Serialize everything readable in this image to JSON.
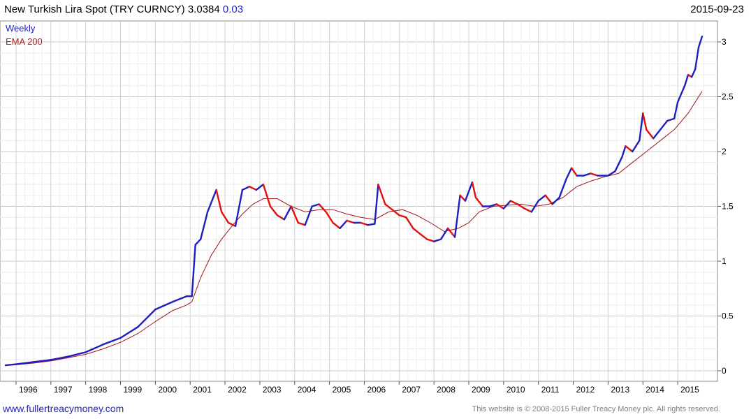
{
  "header": {
    "title": "New Turkish Lira Spot (TRY CURNCY) 3.0384",
    "change": "0.03",
    "date": "2015-09-23"
  },
  "footer": {
    "link": "www.fullertreacymoney.com",
    "copyright": "This website is © 2008-2015 Fuller Treacy Money plc. All rights reserved."
  },
  "colors": {
    "up": "#1f1fbf",
    "down": "#e01010",
    "ema": "#a01818",
    "grid": "#d8d8d8",
    "legend_weekly": "#1f1fbf",
    "legend_ema": "#b02020"
  },
  "chart_data": {
    "type": "line",
    "title": "New Turkish Lira Spot (TRY CURNCY) 3.0384",
    "x_ticks": [
      "1996",
      "1997",
      "1998",
      "1999",
      "2000",
      "2001",
      "2002",
      "2003",
      "2004",
      "2005",
      "2006",
      "2007",
      "2008",
      "2009",
      "2010",
      "2011",
      "2012",
      "2013",
      "2014",
      "2015"
    ],
    "y_ticks": [
      "0",
      "0.5",
      "1",
      "1.5",
      "2",
      "2.5",
      "3"
    ],
    "ylim": [
      0,
      3.1
    ],
    "xlim": [
      1995.7,
      2015.9
    ],
    "grid": true,
    "legend_position": "top-left",
    "series": [
      {
        "name": "Weekly",
        "x": [
          1995.7,
          1996.0,
          1996.5,
          1997.0,
          1997.5,
          1998.0,
          1998.5,
          1999.0,
          1999.5,
          2000.0,
          2000.5,
          2000.9,
          2001.05,
          2001.15,
          2001.3,
          2001.5,
          2001.75,
          2001.9,
          2002.1,
          2002.3,
          2002.5,
          2002.7,
          2002.9,
          2003.1,
          2003.3,
          2003.5,
          2003.7,
          2003.9,
          2004.1,
          2004.3,
          2004.5,
          2004.7,
          2004.9,
          2005.1,
          2005.3,
          2005.5,
          2005.7,
          2005.9,
          2006.1,
          2006.3,
          2006.4,
          2006.6,
          2006.8,
          2007.0,
          2007.2,
          2007.4,
          2007.6,
          2007.8,
          2008.0,
          2008.2,
          2008.4,
          2008.6,
          2008.75,
          2008.9,
          2009.1,
          2009.2,
          2009.4,
          2009.6,
          2009.8,
          2010.0,
          2010.2,
          2010.4,
          2010.6,
          2010.8,
          2011.0,
          2011.2,
          2011.4,
          2011.6,
          2011.8,
          2011.95,
          2012.1,
          2012.3,
          2012.5,
          2012.7,
          2012.9,
          2013.0,
          2013.2,
          2013.4,
          2013.5,
          2013.7,
          2013.9,
          2014.0,
          2014.1,
          2014.3,
          2014.5,
          2014.7,
          2014.9,
          2015.0,
          2015.2,
          2015.3,
          2015.4,
          2015.5,
          2015.6,
          2015.7
        ],
        "y": [
          0.05,
          0.06,
          0.08,
          0.1,
          0.13,
          0.17,
          0.24,
          0.3,
          0.4,
          0.56,
          0.63,
          0.68,
          0.68,
          1.15,
          1.2,
          1.45,
          1.65,
          1.45,
          1.35,
          1.32,
          1.65,
          1.68,
          1.65,
          1.7,
          1.5,
          1.42,
          1.38,
          1.5,
          1.35,
          1.33,
          1.5,
          1.52,
          1.45,
          1.35,
          1.3,
          1.37,
          1.35,
          1.35,
          1.33,
          1.34,
          1.7,
          1.52,
          1.47,
          1.42,
          1.4,
          1.3,
          1.25,
          1.2,
          1.18,
          1.2,
          1.3,
          1.22,
          1.6,
          1.55,
          1.72,
          1.58,
          1.5,
          1.5,
          1.52,
          1.48,
          1.55,
          1.52,
          1.48,
          1.45,
          1.55,
          1.6,
          1.52,
          1.58,
          1.75,
          1.85,
          1.78,
          1.78,
          1.8,
          1.78,
          1.78,
          1.78,
          1.82,
          1.95,
          2.05,
          2.0,
          2.1,
          2.35,
          2.2,
          2.12,
          2.2,
          2.28,
          2.3,
          2.45,
          2.6,
          2.7,
          2.68,
          2.75,
          2.95,
          3.05
        ]
      },
      {
        "name": "EMA 200",
        "x": [
          1995.7,
          1996.0,
          1996.5,
          1997.0,
          1997.5,
          1998.0,
          1998.5,
          1999.0,
          1999.5,
          2000.0,
          2000.5,
          2000.9,
          2001.05,
          2001.3,
          2001.6,
          2001.9,
          2002.2,
          2002.5,
          2002.8,
          2003.1,
          2003.5,
          2003.9,
          2004.3,
          2004.7,
          2005.1,
          2005.5,
          2005.9,
          2006.3,
          2006.7,
          2007.1,
          2007.5,
          2007.9,
          2008.3,
          2008.7,
          2009.0,
          2009.3,
          2009.7,
          2010.1,
          2010.5,
          2010.9,
          2011.3,
          2011.7,
          2012.1,
          2012.5,
          2012.9,
          2013.3,
          2013.7,
          2014.1,
          2014.5,
          2014.9,
          2015.3,
          2015.7
        ],
        "y": [
          0.05,
          0.055,
          0.07,
          0.09,
          0.12,
          0.15,
          0.2,
          0.26,
          0.34,
          0.45,
          0.55,
          0.6,
          0.63,
          0.85,
          1.05,
          1.2,
          1.32,
          1.43,
          1.52,
          1.57,
          1.57,
          1.5,
          1.45,
          1.47,
          1.47,
          1.43,
          1.4,
          1.38,
          1.45,
          1.47,
          1.42,
          1.35,
          1.27,
          1.3,
          1.35,
          1.45,
          1.5,
          1.51,
          1.52,
          1.5,
          1.52,
          1.58,
          1.68,
          1.73,
          1.77,
          1.8,
          1.9,
          2.0,
          2.1,
          2.2,
          2.35,
          2.55
        ]
      }
    ]
  }
}
